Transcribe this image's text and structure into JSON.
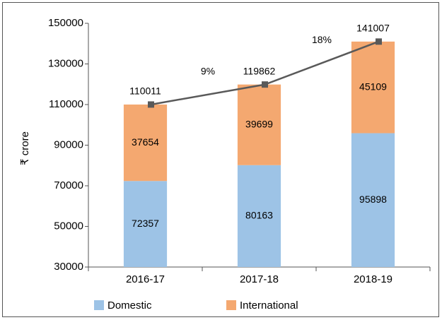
{
  "chart_data": {
    "type": "bar",
    "y_label": "₹ crore",
    "categories": [
      "2016-17",
      "2017-18",
      "2018-19"
    ],
    "series": [
      {
        "name": "Domestic",
        "color": "#9dc3e6",
        "values": [
          72357,
          80163,
          95898
        ]
      },
      {
        "name": "International",
        "color": "#f4a870",
        "values": [
          37654,
          39699,
          45109
        ]
      }
    ],
    "totals": {
      "color": "#595959",
      "values": [
        110011,
        119862,
        141007
      ]
    },
    "growth_labels": [
      "9%",
      "18%"
    ],
    "ylim": [
      30000,
      150000
    ],
    "yticks": [
      30000,
      50000,
      70000,
      90000,
      110000,
      130000,
      150000
    ],
    "grid": false,
    "legend": "bottom"
  }
}
